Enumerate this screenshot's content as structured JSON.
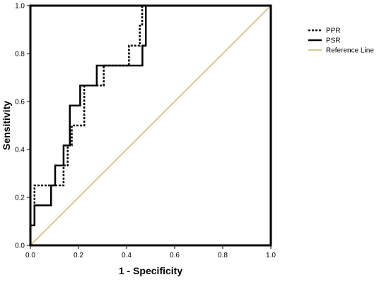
{
  "chart_data": {
    "type": "line",
    "title": "",
    "xlabel": "1 - Specificity",
    "ylabel": "Sensitivity",
    "xlim": [
      0,
      1
    ],
    "ylim": [
      0,
      1
    ],
    "x_ticks": [
      "0.0",
      "0.2",
      "0.4",
      "0.6",
      "0.8",
      "1.0"
    ],
    "y_ticks": [
      "0.0",
      "0.2",
      "0.4",
      "0.6",
      "0.8",
      "1.0"
    ],
    "grid": false,
    "legend_position": "right",
    "series": [
      {
        "name": "PPR",
        "color": "#000000",
        "style": "dotted",
        "x": [
          0,
          0,
          0.017,
          0.017,
          0.138,
          0.138,
          0.155,
          0.155,
          0.172,
          0.172,
          0.224,
          0.224,
          0.305,
          0.305,
          0.41,
          0.41,
          0.455,
          0.455,
          0.465,
          0.465,
          0.475
        ],
        "y": [
          0,
          0.083,
          0.083,
          0.25,
          0.25,
          0.333,
          0.333,
          0.417,
          0.417,
          0.5,
          0.5,
          0.667,
          0.667,
          0.75,
          0.75,
          0.833,
          0.833,
          0.917,
          0.917,
          1.0,
          1.0
        ]
      },
      {
        "name": "PSR",
        "color": "#000000",
        "style": "solid",
        "x": [
          0,
          0,
          0.017,
          0.017,
          0.034,
          0.034,
          0.086,
          0.086,
          0.103,
          0.103,
          0.138,
          0.138,
          0.164,
          0.164,
          0.207,
          0.207,
          0.276,
          0.276,
          0.431,
          0.431,
          0.466,
          0.466,
          0.48,
          0.48,
          1.0
        ],
        "y": [
          0,
          0.083,
          0.083,
          0.167,
          0.167,
          0.167,
          0.167,
          0.25,
          0.25,
          0.333,
          0.333,
          0.417,
          0.417,
          0.583,
          0.583,
          0.667,
          0.667,
          0.75,
          0.75,
          0.75,
          0.75,
          0.833,
          0.833,
          1.0,
          1.0
        ]
      },
      {
        "name": "Reference Line",
        "color": "#d2c99a",
        "style": "solid",
        "x": [
          0,
          1
        ],
        "y": [
          0,
          1
        ]
      }
    ]
  }
}
